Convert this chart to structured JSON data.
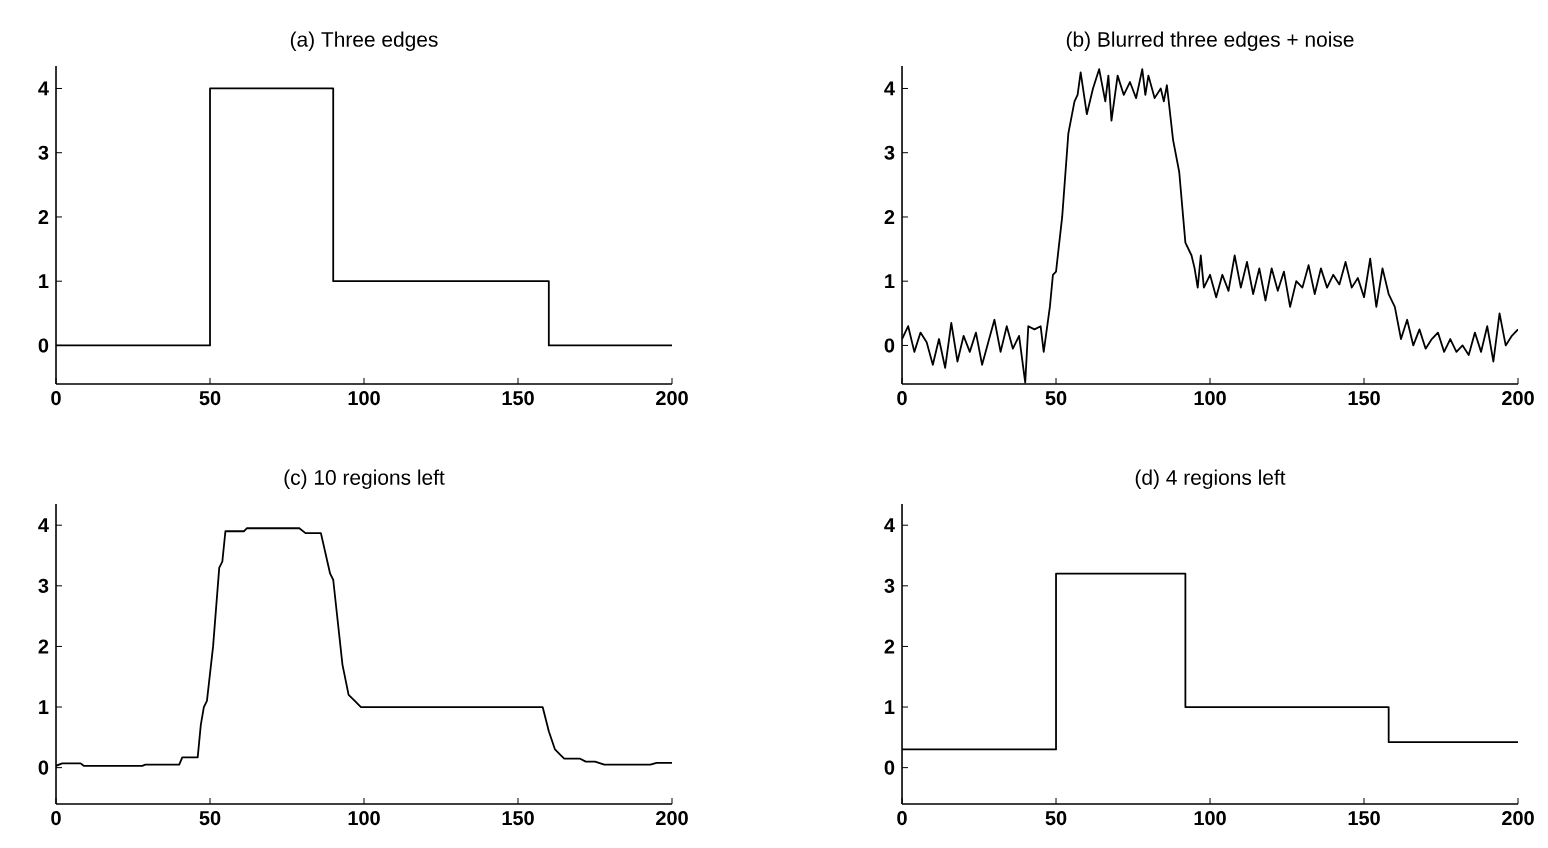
{
  "chart_data": [
    {
      "type": "line",
      "title": "(a) Three edges",
      "color": "#000000",
      "xlim": [
        0,
        200
      ],
      "ylim": [
        -0.6,
        4.35
      ],
      "xticks": [
        0,
        50,
        100,
        150,
        200
      ],
      "yticks": [
        0,
        1,
        2,
        3,
        4
      ],
      "x": [
        0,
        50,
        50,
        90,
        90,
        160,
        160,
        200
      ],
      "values": [
        0,
        0,
        4,
        4,
        1,
        1,
        0,
        0
      ]
    },
    {
      "type": "line",
      "title": "(b) Blurred three edges + noise",
      "color": "#000000",
      "xlim": [
        0,
        200
      ],
      "ylim": [
        -0.6,
        4.35
      ],
      "xticks": [
        0,
        50,
        100,
        150,
        200
      ],
      "yticks": [
        0,
        1,
        2,
        3,
        4
      ],
      "x": [
        0,
        2,
        4,
        6,
        8,
        10,
        12,
        14,
        16,
        18,
        20,
        22,
        24,
        26,
        28,
        30,
        32,
        34,
        36,
        38,
        40,
        41,
        43,
        45,
        46,
        48,
        49,
        50,
        52,
        54,
        56,
        57,
        58,
        60,
        62,
        64,
        66,
        67,
        68,
        70,
        72,
        74,
        76,
        78,
        79,
        80,
        82,
        84,
        85,
        86,
        88,
        90,
        92,
        94,
        95,
        96,
        97,
        98,
        100,
        102,
        104,
        106,
        108,
        110,
        112,
        114,
        116,
        118,
        120,
        122,
        124,
        126,
        128,
        130,
        132,
        134,
        136,
        138,
        140,
        142,
        144,
        146,
        148,
        150,
        152,
        154,
        156,
        158,
        160,
        162,
        164,
        166,
        168,
        170,
        172,
        174,
        176,
        178,
        180,
        182,
        184,
        186,
        188,
        190,
        192,
        194,
        196,
        198,
        200
      ],
      "values": [
        0.1,
        0.3,
        -0.1,
        0.2,
        0.05,
        -0.3,
        0.1,
        -0.35,
        0.35,
        -0.25,
        0.15,
        -0.1,
        0.2,
        -0.3,
        0.05,
        0.4,
        -0.1,
        0.3,
        -0.05,
        0.15,
        -0.58,
        0.3,
        0.25,
        0.3,
        -0.1,
        0.6,
        1.1,
        1.15,
        2.0,
        3.3,
        3.8,
        3.9,
        4.25,
        3.6,
        4.0,
        4.3,
        3.8,
        4.2,
        3.5,
        4.2,
        3.9,
        4.1,
        3.85,
        4.3,
        3.9,
        4.2,
        3.85,
        4.0,
        3.8,
        4.05,
        3.2,
        2.7,
        1.6,
        1.4,
        1.2,
        0.9,
        1.4,
        0.9,
        1.1,
        0.75,
        1.1,
        0.85,
        1.4,
        0.9,
        1.3,
        0.8,
        1.2,
        0.7,
        1.2,
        0.85,
        1.15,
        0.6,
        1.0,
        0.9,
        1.25,
        0.8,
        1.2,
        0.9,
        1.1,
        0.95,
        1.3,
        0.9,
        1.05,
        0.75,
        1.35,
        0.6,
        1.2,
        0.8,
        0.6,
        0.1,
        0.4,
        0.0,
        0.25,
        -0.05,
        0.1,
        0.2,
        -0.1,
        0.1,
        -0.1,
        0.0,
        -0.15,
        0.2,
        -0.1,
        0.3,
        -0.25,
        0.5,
        0.0,
        0.15,
        0.25
      ]
    },
    {
      "type": "line",
      "title": "(c) 10 regions left",
      "color": "#000000",
      "xlim": [
        0,
        200
      ],
      "ylim": [
        -0.6,
        4.35
      ],
      "xticks": [
        0,
        50,
        100,
        150,
        200
      ],
      "yticks": [
        0,
        1,
        2,
        3,
        4
      ],
      "x": [
        0,
        2,
        8,
        9,
        28,
        29,
        40,
        41,
        46,
        47,
        48,
        49,
        51,
        53,
        54,
        55,
        61,
        62,
        79,
        81,
        86,
        89,
        90,
        93,
        95,
        97,
        99,
        158,
        160,
        162,
        164,
        165,
        170,
        172,
        175,
        178,
        193,
        195,
        200
      ],
      "values": [
        0.03,
        0.07,
        0.07,
        0.03,
        0.03,
        0.05,
        0.05,
        0.17,
        0.17,
        0.7,
        1.0,
        1.1,
        2.0,
        3.3,
        3.4,
        3.9,
        3.9,
        3.95,
        3.95,
        3.87,
        3.87,
        3.2,
        3.1,
        1.7,
        1.2,
        1.1,
        1.0,
        1.0,
        0.6,
        0.3,
        0.2,
        0.15,
        0.15,
        0.1,
        0.1,
        0.05,
        0.05,
        0.08,
        0.08
      ]
    },
    {
      "type": "line",
      "title": "(d) 4 regions left",
      "color": "#000000",
      "xlim": [
        0,
        200
      ],
      "ylim": [
        -0.6,
        4.35
      ],
      "xticks": [
        0,
        50,
        100,
        150,
        200
      ],
      "yticks": [
        0,
        1,
        2,
        3,
        4
      ],
      "x": [
        0,
        50,
        50,
        92,
        92,
        158,
        158,
        200
      ],
      "values": [
        0.3,
        0.3,
        3.2,
        3.2,
        1,
        1,
        0.42,
        0.42
      ]
    }
  ]
}
